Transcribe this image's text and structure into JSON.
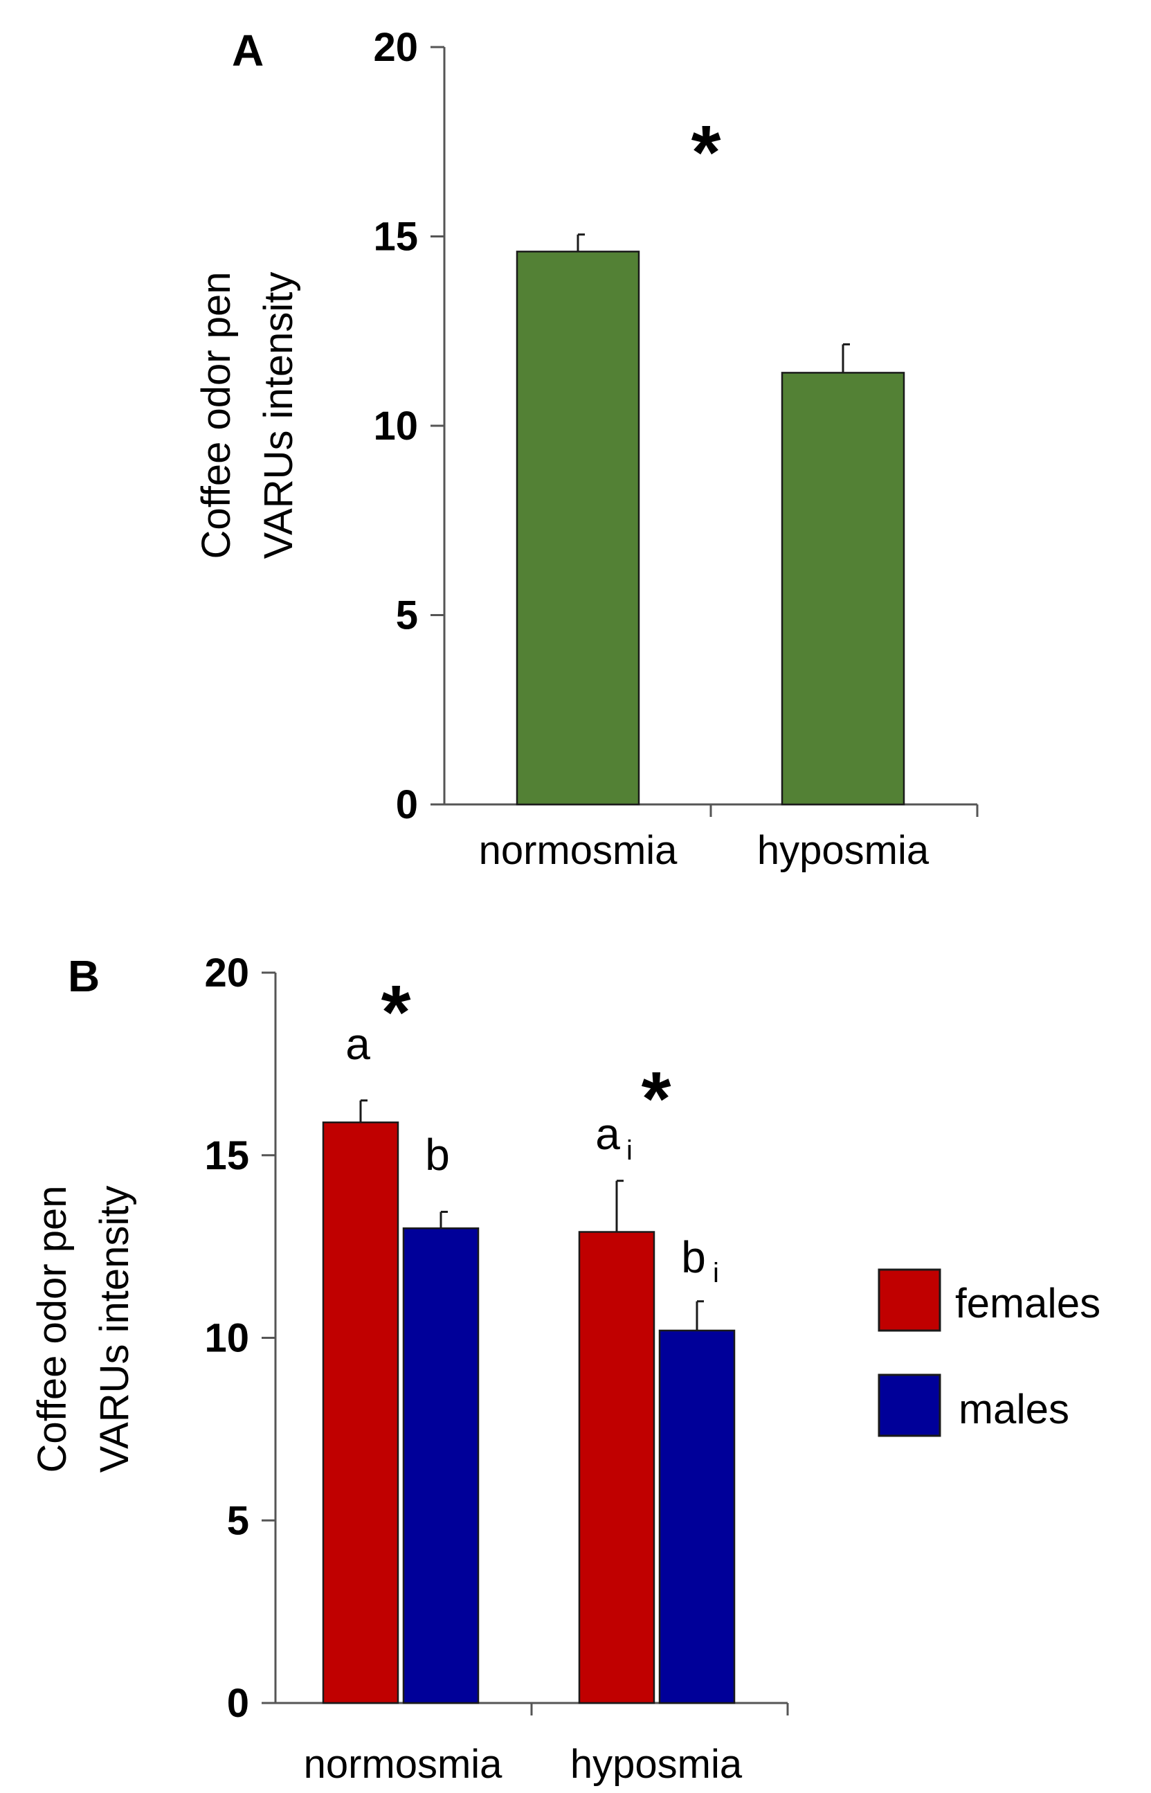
{
  "chart_data": [
    {
      "panel": "A",
      "type": "bar",
      "ylabel_line1": "Coffee odor pen",
      "ylabel_line2": "VARUs intensity",
      "xlabel": "",
      "ylim": [
        0,
        20
      ],
      "yticks": [
        "0",
        "5",
        "10",
        "15",
        "20"
      ],
      "categories": [
        "normosmia",
        "hyposmia"
      ],
      "series": [
        {
          "values": [
            14.6,
            11.4
          ],
          "errors": [
            0.45,
            0.75
          ],
          "color": "#538135"
        }
      ],
      "annotations": {
        "significance": "*"
      },
      "grid": false
    },
    {
      "panel": "B",
      "type": "bar",
      "ylabel_line1": "Coffee odor pen",
      "ylabel_line2": "VARUs intensity",
      "xlabel": "",
      "ylim": [
        0,
        20
      ],
      "yticks": [
        "0",
        "5",
        "10",
        "15",
        "20"
      ],
      "categories": [
        "normosmia",
        "hyposmia"
      ],
      "series": [
        {
          "name": "females",
          "values": [
            15.9,
            12.9
          ],
          "errors": [
            0.6,
            1.4
          ],
          "color": "#C00000"
        },
        {
          "name": "males",
          "values": [
            13.0,
            10.2
          ],
          "errors": [
            0.45,
            0.8
          ],
          "color": "#000099"
        }
      ],
      "annotations": {
        "normosmia": {
          "female_letter": "a",
          "male_letter": "b",
          "significance": "*"
        },
        "hyposmia": {
          "female_letter": "a",
          "female_sub": "i",
          "male_letter": "b",
          "male_sub": "i",
          "significance": "*"
        }
      },
      "legend_position": "right",
      "grid": false
    }
  ]
}
